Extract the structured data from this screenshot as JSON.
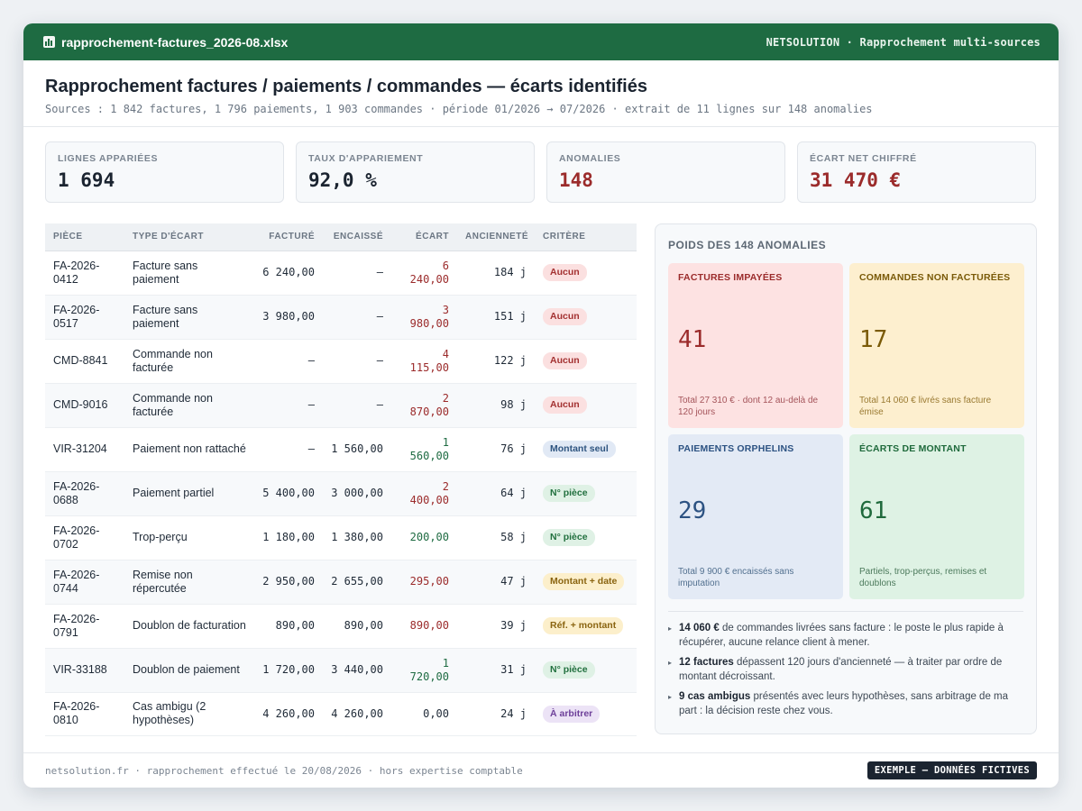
{
  "window": {
    "file_name": "rapprochement-factures_2026-08.xlsx",
    "app_label": "NETSOLUTION · Rapprochement multi-sources"
  },
  "header": {
    "title": "Rapprochement factures / paiements / commandes — écarts identifiés",
    "subtitle": "Sources : 1 842 factures, 1 796 paiements, 1 903 commandes · période 01/2026 → 07/2026 · extrait de 11 lignes sur 148 anomalies"
  },
  "kpis": [
    {
      "label": "Lignes appariées",
      "value": "1 694"
    },
    {
      "label": "Taux d'appariement",
      "value": "92,0 %"
    },
    {
      "label": "Anomalies",
      "value": "148"
    },
    {
      "label": "Écart net chiffré",
      "value": "31 470 €"
    }
  ],
  "table": {
    "headers": [
      "Pièce",
      "Type d'écart",
      "Facturé",
      "Encaissé",
      "Écart",
      "Ancienneté",
      "Critère"
    ],
    "rows": [
      {
        "piece": "FA-2026-0412",
        "type": "Facture sans paiement",
        "facture": "6 240,00",
        "encaisse": "—",
        "ecart": "6 240,00",
        "anciennete": "184 j",
        "critere": "Aucun"
      },
      {
        "piece": "FA-2026-0517",
        "type": "Facture sans paiement",
        "facture": "3 980,00",
        "encaisse": "—",
        "ecart": "3 980,00",
        "anciennete": "151 j",
        "critere": "Aucun"
      },
      {
        "piece": "CMD-8841",
        "type": "Commande non facturée",
        "facture": "—",
        "encaisse": "—",
        "ecart": "4 115,00",
        "anciennete": "122 j",
        "critere": "Aucun"
      },
      {
        "piece": "CMD-9016",
        "type": "Commande non facturée",
        "facture": "—",
        "encaisse": "—",
        "ecart": "2 870,00",
        "anciennete": "98 j",
        "critere": "Aucun"
      },
      {
        "piece": "VIR-31204",
        "type": "Paiement non rattaché",
        "facture": "—",
        "encaisse": "1 560,00",
        "ecart": "1 560,00",
        "anciennete": "76 j",
        "critere": "Montant seul"
      },
      {
        "piece": "FA-2026-0688",
        "type": "Paiement partiel",
        "facture": "5 400,00",
        "encaisse": "3 000,00",
        "ecart": "2 400,00",
        "anciennete": "64 j",
        "critere": "N° pièce"
      },
      {
        "piece": "FA-2026-0702",
        "type": "Trop-perçu",
        "facture": "1 180,00",
        "encaisse": "1 380,00",
        "ecart": "200,00",
        "anciennete": "58 j",
        "critere": "N° pièce"
      },
      {
        "piece": "FA-2026-0744",
        "type": "Remise non répercutée",
        "facture": "2 950,00",
        "encaisse": "2 655,00",
        "ecart": "295,00",
        "anciennete": "47 j",
        "critere": "Montant + date"
      },
      {
        "piece": "FA-2026-0791",
        "type": "Doublon de facturation",
        "facture": "890,00",
        "encaisse": "890,00",
        "ecart": "890,00",
        "anciennete": "39 j",
        "critere": "Réf. + montant"
      },
      {
        "piece": "VIR-33188",
        "type": "Doublon de paiement",
        "facture": "1 720,00",
        "encaisse": "3 440,00",
        "ecart": "1 720,00",
        "anciennete": "31 j",
        "critere": "N° pièce"
      },
      {
        "piece": "FA-2026-0810",
        "type": "Cas ambigu (2 hypothèses)",
        "facture": "4 260,00",
        "encaisse": "4 260,00",
        "ecart": "0,00",
        "anciennete": "24 j",
        "critere": "À arbitrer"
      }
    ]
  },
  "panel": {
    "title": "Poids des 148 anomalies",
    "tiles": [
      {
        "label": "Factures impayées",
        "value": "41",
        "note": "Total 27 310 € · dont 12 au-delà de 120 jours"
      },
      {
        "label": "Commandes non facturées",
        "value": "17",
        "note": "Total 14 060 € livrés sans facture émise"
      },
      {
        "label": "Paiements orphelins",
        "value": "29",
        "note": "Total 9 900 € encaissés sans imputation"
      },
      {
        "label": "Écarts de montant",
        "value": "61",
        "note": "Partiels, trop-perçus, remises et doublons"
      }
    ],
    "notes": [
      {
        "bold": "14 060 €",
        "text": " de commandes livrées sans facture : le poste le plus rapide à récupérer, aucune relance client à mener."
      },
      {
        "bold": "12 factures",
        "text": " dépassent 120 jours d'ancienneté — à traiter par ordre de montant décroissant."
      },
      {
        "bold": "9 cas ambigus",
        "text": " présentés avec leurs hypothèses, sans arbitrage de ma part : la décision reste chez vous."
      }
    ]
  },
  "footer": {
    "text": "netsolution.fr · rapprochement effectué le 20/08/2026 · hors expertise comptable",
    "stamp": "EXEMPLE — DONNÉES FICTIVES"
  },
  "colors": {
    "titlebar": "#1e6b42",
    "negative": "#9b2b2b",
    "positive": "#1e6b42"
  }
}
